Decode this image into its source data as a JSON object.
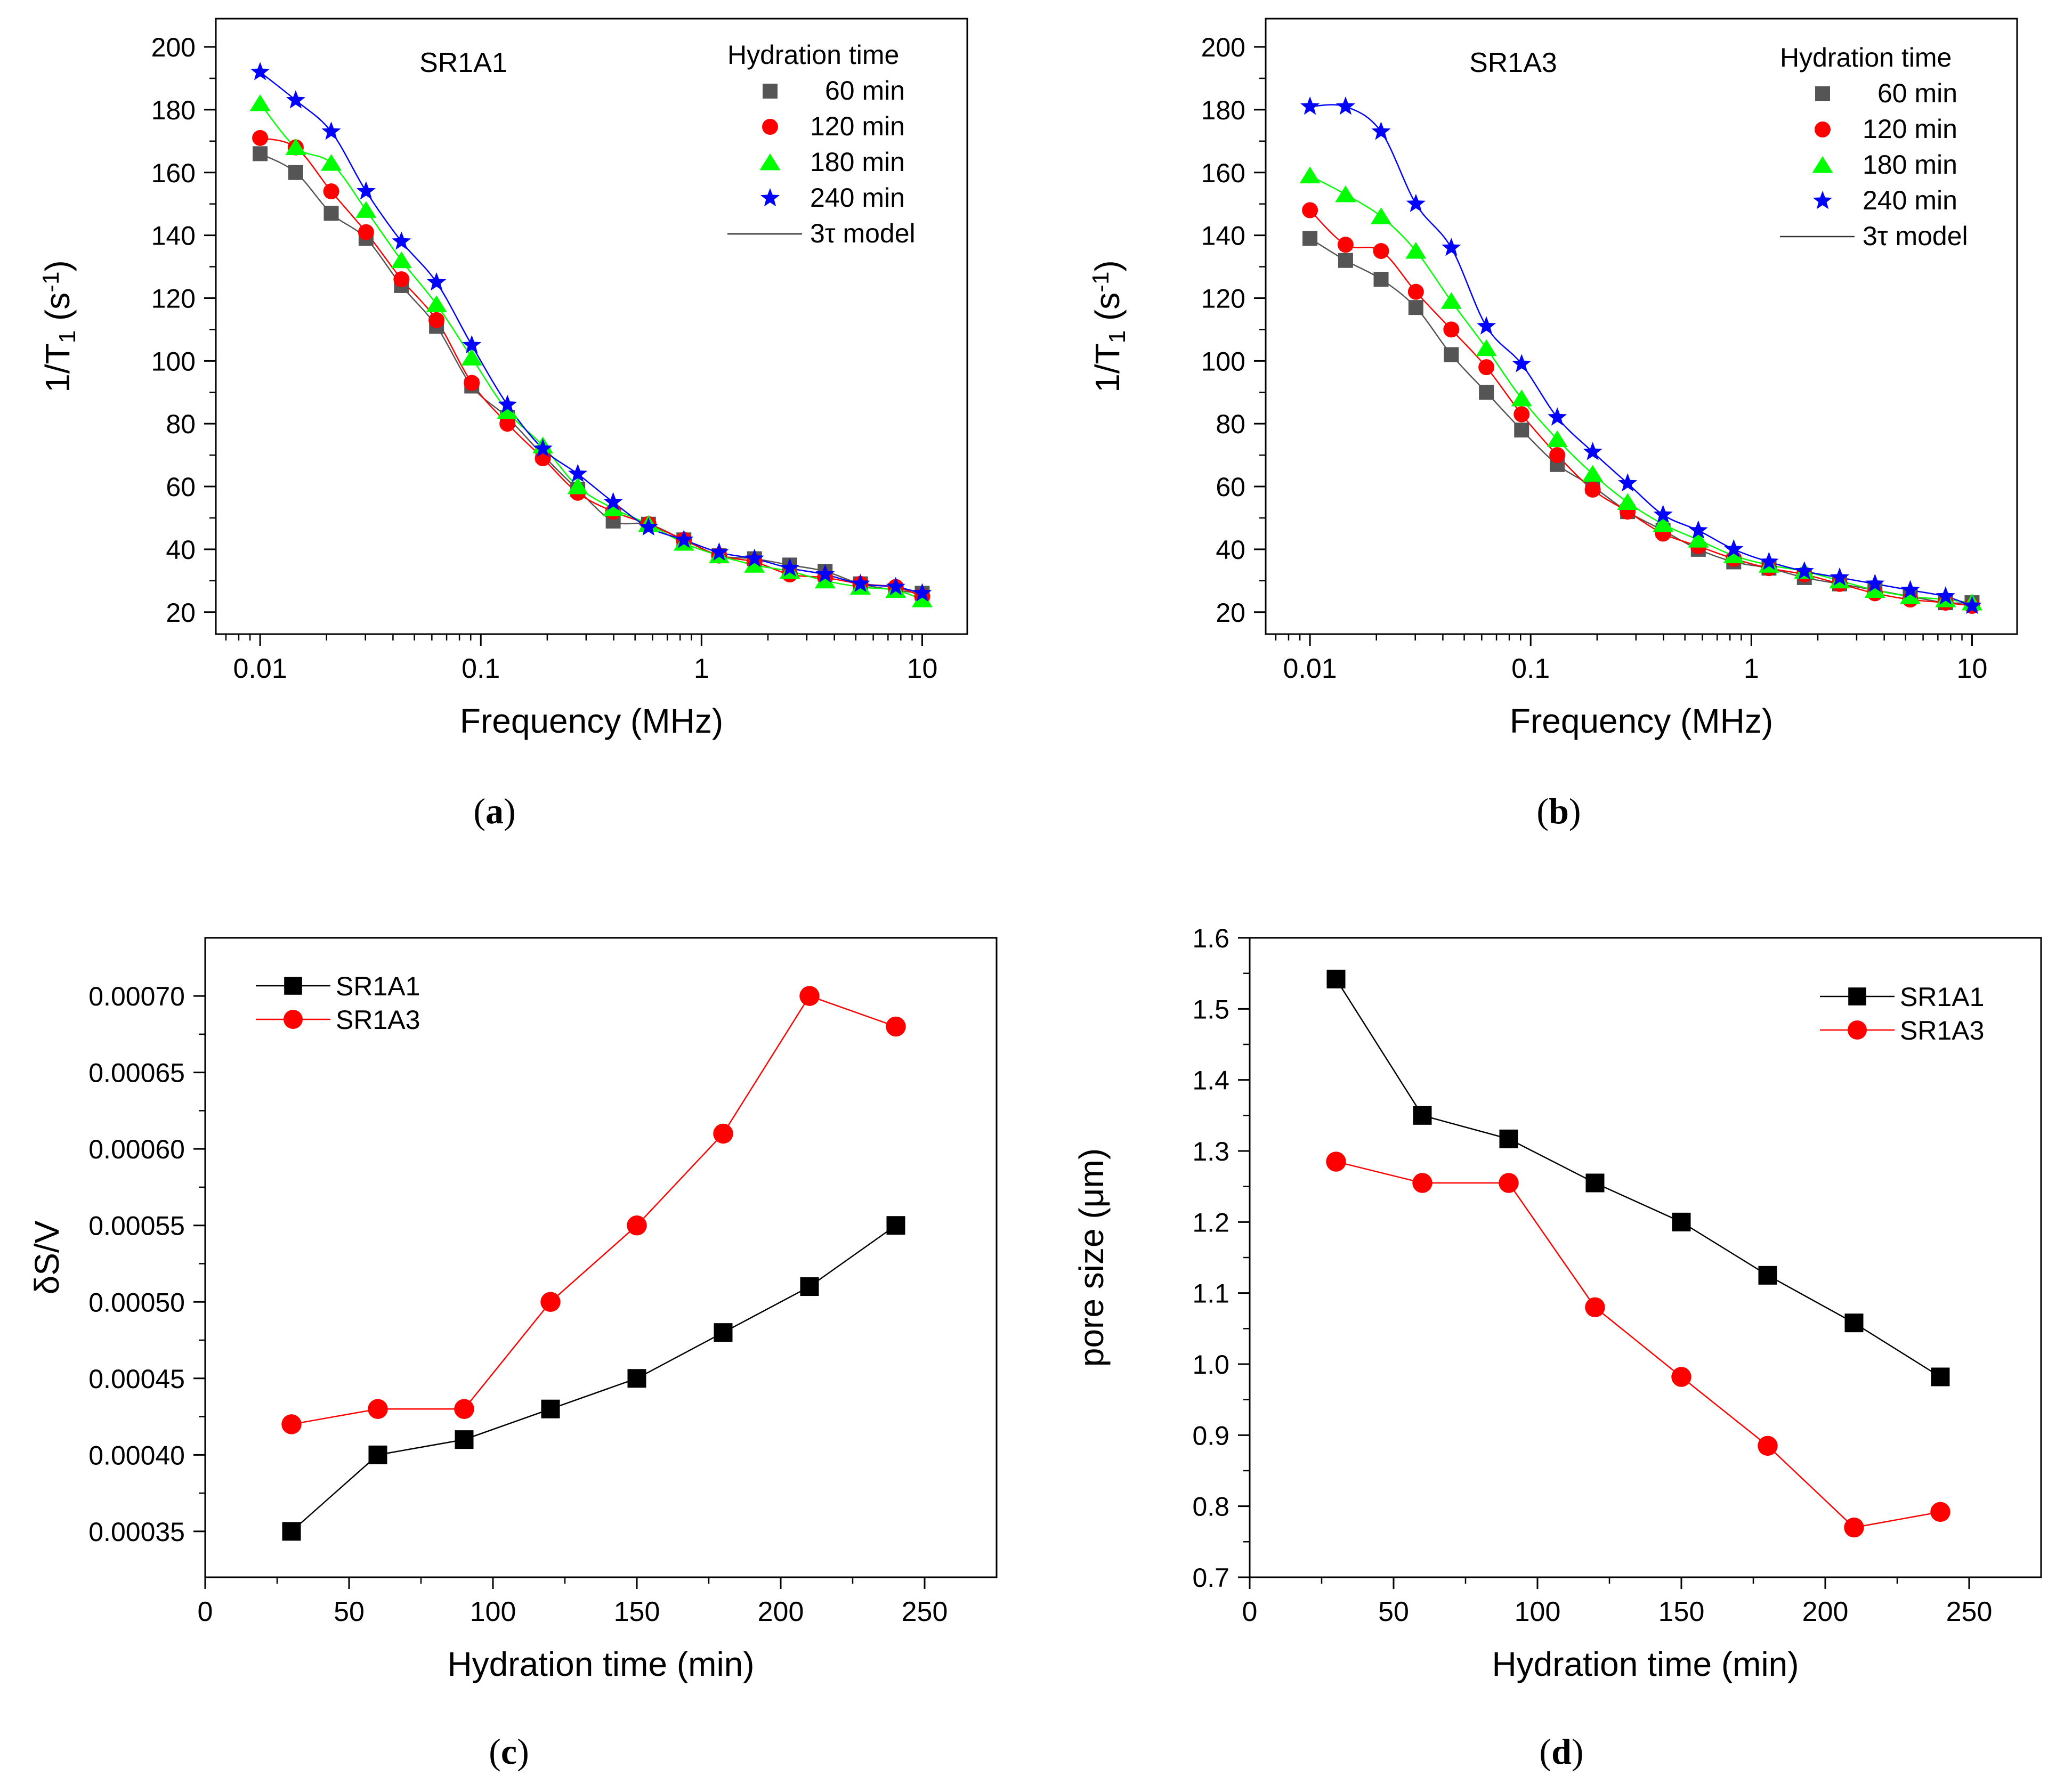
{
  "chart_data": [
    {
      "id": "a",
      "type": "scatter",
      "panel_label": "(a)",
      "panel_letter": "a",
      "title": "SR1A1",
      "xlabel": "Frequency (MHz)",
      "ylabel_parts": [
        "1/T",
        "1",
        " (s",
        "-1",
        ")"
      ],
      "xscale": "log",
      "xlim": [
        0.0063,
        16
      ],
      "ylim": [
        13,
        209
      ],
      "xticks": [
        0.01,
        0.1,
        1,
        10
      ],
      "xtick_labels": [
        "0.01",
        "0.1",
        "1",
        "10"
      ],
      "yticks": [
        20,
        40,
        60,
        80,
        100,
        120,
        140,
        160,
        180,
        200
      ],
      "legend_title": "Hydration time",
      "legend_position": "top-right",
      "x": [
        0.01,
        0.0145,
        0.021,
        0.0302,
        0.0437,
        0.063,
        0.091,
        0.132,
        0.191,
        0.275,
        0.398,
        0.575,
        0.832,
        1.202,
        1.738,
        2.512,
        3.631,
        5.248,
        7.586,
        10.0
      ],
      "series": [
        {
          "name": "60 min",
          "marker": "square",
          "color": "#555555",
          "values": [
            166,
            160,
            147,
            139,
            124,
            111,
            92,
            82,
            70,
            59,
            49,
            48,
            43,
            38,
            37,
            35,
            33,
            29,
            27,
            26
          ]
        },
        {
          "name": "120 min",
          "marker": "circle",
          "color": "#ff0000",
          "values": [
            171,
            168,
            154,
            141,
            126,
            113,
            93,
            80,
            69,
            58,
            52,
            48,
            43,
            38,
            36,
            32,
            31,
            29,
            28,
            25
          ]
        },
        {
          "name": "180 min",
          "marker": "triangle",
          "color": "#00ff00",
          "values": [
            182,
            168,
            163,
            148,
            132,
            118,
            101,
            84,
            73,
            60,
            53,
            48,
            42,
            38,
            35,
            33,
            30,
            28,
            27,
            24
          ]
        },
        {
          "name": "240 min",
          "marker": "star",
          "color": "#0000ff",
          "values": [
            192,
            183,
            173,
            154,
            138,
            125,
            105,
            86,
            72,
            64,
            55,
            47,
            43,
            39,
            37,
            34,
            32,
            29,
            28,
            26
          ]
        }
      ],
      "model_label": "3τ model"
    },
    {
      "id": "b",
      "type": "scatter",
      "panel_label": "(b)",
      "panel_letter": "b",
      "title": "SR1A3",
      "xlabel": "Frequency (MHz)",
      "ylabel_parts": [
        "1/T",
        "1",
        " (s",
        "-1",
        ")"
      ],
      "xscale": "log",
      "xlim": [
        0.0063,
        16
      ],
      "ylim": [
        13,
        209
      ],
      "xticks": [
        0.01,
        0.1,
        1,
        10
      ],
      "xtick_labels": [
        "0.01",
        "0.1",
        "1",
        "10"
      ],
      "yticks": [
        20,
        40,
        60,
        80,
        100,
        120,
        140,
        160,
        180,
        200
      ],
      "legend_title": "Hydration time",
      "legend_position": "top-right",
      "x": [
        0.01,
        0.0145,
        0.021,
        0.0302,
        0.0437,
        0.063,
        0.091,
        0.132,
        0.191,
        0.275,
        0.398,
        0.575,
        0.832,
        1.202,
        1.738,
        2.512,
        3.631,
        5.248,
        7.586,
        10.0
      ],
      "series": [
        {
          "name": "60 min",
          "marker": "square",
          "color": "#555555",
          "values": [
            139,
            132,
            126,
            117,
            102,
            90,
            78,
            67,
            60,
            52,
            46,
            40,
            36,
            34,
            31,
            29,
            27,
            25,
            23,
            23
          ]
        },
        {
          "name": "120 min",
          "marker": "circle",
          "color": "#ff0000",
          "values": [
            148,
            137,
            135,
            122,
            110,
            98,
            83,
            70,
            59,
            52,
            45,
            41,
            37,
            34,
            32,
            29,
            26,
            24,
            23,
            22
          ]
        },
        {
          "name": "180 min",
          "marker": "triangle",
          "color": "#00ff00",
          "values": [
            159,
            153,
            146,
            135,
            119,
            104,
            88,
            75,
            64,
            55,
            48,
            43,
            38,
            35,
            33,
            30,
            27,
            25,
            24,
            23
          ]
        },
        {
          "name": "240 min",
          "marker": "star",
          "color": "#0000ff",
          "values": [
            181,
            181,
            173,
            150,
            136,
            111,
            99,
            82,
            71,
            61,
            51,
            46,
            40,
            36,
            33,
            31,
            29,
            27,
            25,
            22
          ]
        }
      ],
      "model_label": "3τ model"
    },
    {
      "id": "c",
      "type": "line",
      "panel_label": "(c)",
      "panel_letter": "c",
      "title": "",
      "xlabel": "Hydration time (min)",
      "ylabel": "δS/V",
      "xlim": [
        0,
        275
      ],
      "ylim": [
        0.00032,
        0.000738
      ],
      "xticks": [
        0,
        50,
        100,
        150,
        200,
        250
      ],
      "yticks": [
        0.00035,
        0.0004,
        0.00045,
        0.0005,
        0.00055,
        0.0006,
        0.00065,
        0.0007
      ],
      "ytick_labels": [
        "0.00035",
        "0.00040",
        "0.00045",
        "0.00050",
        "0.00055",
        "0.00060",
        "0.00065",
        "0.00070"
      ],
      "legend_position": "top-left",
      "x": [
        30,
        60,
        90,
        120,
        150,
        180,
        210,
        240
      ],
      "series": [
        {
          "name": "SR1A1",
          "marker": "square",
          "color": "#000000",
          "values": [
            0.00035,
            0.0004,
            0.00041,
            0.00043,
            0.00045,
            0.00048,
            0.00051,
            0.00055
          ]
        },
        {
          "name": "SR1A3",
          "marker": "circle",
          "color": "#ff0000",
          "values": [
            0.00042,
            0.00043,
            0.00043,
            0.0005,
            0.00055,
            0.00061,
            0.0007,
            0.00068
          ]
        }
      ]
    },
    {
      "id": "d",
      "type": "line",
      "panel_label": "(d)",
      "panel_letter": "d",
      "title": "",
      "xlabel": "Hydration time (min)",
      "ylabel": "pore size (μm)",
      "xlim": [
        0,
        275
      ],
      "ylim": [
        0.7,
        1.6
      ],
      "xticks": [
        0,
        50,
        100,
        150,
        200,
        250
      ],
      "yticks": [
        0.7,
        0.8,
        0.9,
        1.0,
        1.1,
        1.2,
        1.3,
        1.4,
        1.5,
        1.6
      ],
      "ytick_labels": [
        "0.7",
        "0.8",
        "0.9",
        "1.0",
        "1.1",
        "1.2",
        "1.3",
        "1.4",
        "1.5",
        "1.6"
      ],
      "legend_position": "top-right",
      "x": [
        30,
        60,
        90,
        120,
        150,
        180,
        210,
        240
      ],
      "series": [
        {
          "name": "SR1A1",
          "marker": "square",
          "color": "#000000",
          "values": [
            1.542,
            1.35,
            1.317,
            1.255,
            1.2,
            1.125,
            1.058,
            0.982
          ]
        },
        {
          "name": "SR1A3",
          "marker": "circle",
          "color": "#ff0000",
          "values": [
            1.285,
            1.255,
            1.255,
            1.08,
            0.982,
            0.885,
            0.77,
            0.792
          ]
        }
      ]
    }
  ]
}
